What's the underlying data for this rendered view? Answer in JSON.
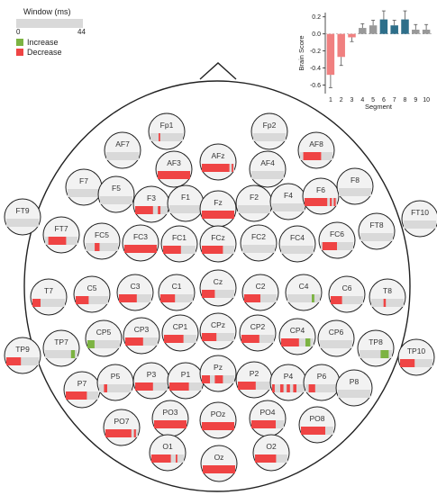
{
  "legend": {
    "title": "Window (ms)",
    "min_label": "0",
    "max_label": "44",
    "increase_label": "Increase",
    "decrease_label": "Decrease",
    "increase_color": "#7cb342",
    "decrease_color": "#ef4444"
  },
  "chart_data": {
    "type": "bar",
    "x": [
      1,
      2,
      3,
      4,
      5,
      6,
      7,
      8,
      9,
      10
    ],
    "values": [
      -0.48,
      -0.27,
      -0.04,
      0.07,
      0.1,
      0.17,
      0.1,
      0.17,
      0.05,
      0.05
    ],
    "errors": [
      0.15,
      0.1,
      0.05,
      0.05,
      0.06,
      0.1,
      0.06,
      0.1,
      0.06,
      0.06
    ],
    "colors": [
      "#f08080",
      "#f08080",
      "#f08080",
      "#999999",
      "#999999",
      "#2e6f8a",
      "#2e6f8a",
      "#2e6f8a",
      "#999999",
      "#999999"
    ],
    "xlabel": "Segment",
    "ylabel": "Brain Score",
    "yticks": [
      "0.2",
      "0.0",
      "-0.2",
      "-0.4",
      "-0.6"
    ],
    "ylim": [
      -0.7,
      0.25
    ]
  },
  "electrodes": [
    {
      "label": "Fp1",
      "marks": [
        [
          0.25,
          0.05,
          "d"
        ]
      ]
    },
    {
      "label": "Fp2",
      "marks": []
    },
    {
      "label": "AF7",
      "marks": []
    },
    {
      "label": "AF3",
      "marks": [
        [
          0.0,
          1.0,
          "d"
        ]
      ]
    },
    {
      "label": "AFz",
      "marks": [
        [
          0.0,
          0.85,
          "d"
        ],
        [
          0.92,
          0.05,
          "d"
        ]
      ]
    },
    {
      "label": "AF4",
      "marks": []
    },
    {
      "label": "AF8",
      "marks": [
        [
          0.1,
          0.55,
          "d"
        ]
      ]
    },
    {
      "label": "F7",
      "marks": []
    },
    {
      "label": "F5",
      "marks": []
    },
    {
      "label": "F3",
      "marks": [
        [
          0.0,
          0.55,
          "d"
        ],
        [
          0.7,
          0.08,
          "d"
        ]
      ]
    },
    {
      "label": "F1",
      "marks": []
    },
    {
      "label": "Fz",
      "marks": [
        [
          0.0,
          1.0,
          "d"
        ]
      ]
    },
    {
      "label": "F2",
      "marks": []
    },
    {
      "label": "F4",
      "marks": []
    },
    {
      "label": "F6",
      "marks": [
        [
          0.0,
          0.7,
          "d"
        ],
        [
          0.78,
          0.06,
          "d"
        ],
        [
          0.9,
          0.06,
          "d"
        ]
      ]
    },
    {
      "label": "F8",
      "marks": []
    },
    {
      "label": "FT9",
      "marks": []
    },
    {
      "label": "FT7",
      "marks": [
        [
          0.1,
          0.55,
          "d"
        ]
      ]
    },
    {
      "label": "FC5",
      "marks": [
        [
          0.28,
          0.15,
          "d"
        ]
      ]
    },
    {
      "label": "FC3",
      "marks": [
        [
          0.0,
          1.0,
          "d"
        ]
      ]
    },
    {
      "label": "FC1",
      "marks": [
        [
          0.0,
          0.55,
          "d"
        ]
      ]
    },
    {
      "label": "FCz",
      "marks": [
        [
          0.0,
          0.65,
          "d"
        ]
      ]
    },
    {
      "label": "FC2",
      "marks": []
    },
    {
      "label": "FC4",
      "marks": []
    },
    {
      "label": "FC6",
      "marks": [
        [
          0.05,
          0.45,
          "d"
        ]
      ]
    },
    {
      "label": "FT8",
      "marks": []
    },
    {
      "label": "FT10",
      "marks": []
    },
    {
      "label": "T7",
      "marks": [
        [
          0.0,
          0.25,
          "d"
        ]
      ]
    },
    {
      "label": "C5",
      "marks": [
        [
          0.0,
          0.4,
          "d"
        ]
      ]
    },
    {
      "label": "C3",
      "marks": [
        [
          0.0,
          0.55,
          "d"
        ]
      ]
    },
    {
      "label": "C1",
      "marks": [
        [
          0.0,
          0.45,
          "d"
        ]
      ]
    },
    {
      "label": "Cz",
      "marks": [
        [
          0.0,
          0.4,
          "d"
        ]
      ]
    },
    {
      "label": "C2",
      "marks": [
        [
          0.0,
          0.5,
          "d"
        ]
      ]
    },
    {
      "label": "C4",
      "marks": [
        [
          0.75,
          0.08,
          "i"
        ]
      ]
    },
    {
      "label": "C6",
      "marks": [
        [
          0.0,
          0.35,
          "d"
        ]
      ]
    },
    {
      "label": "T8",
      "marks": [
        [
          0.38,
          0.07,
          "d"
        ]
      ]
    },
    {
      "label": "TP9",
      "marks": [
        [
          0.0,
          0.45,
          "d"
        ]
      ]
    },
    {
      "label": "TP7",
      "marks": [
        [
          0.8,
          0.12,
          "i"
        ]
      ]
    },
    {
      "label": "CP5",
      "marks": [
        [
          0.0,
          0.22,
          "i"
        ]
      ]
    },
    {
      "label": "CP3",
      "marks": [
        [
          0.0,
          0.55,
          "d"
        ]
      ]
    },
    {
      "label": "CP1",
      "marks": [
        [
          0.0,
          0.6,
          "d"
        ]
      ]
    },
    {
      "label": "CPz",
      "marks": [
        [
          0.0,
          0.45,
          "d"
        ]
      ]
    },
    {
      "label": "CP2",
      "marks": [
        [
          0.0,
          0.55,
          "d"
        ]
      ]
    },
    {
      "label": "CP4",
      "marks": [
        [
          0.0,
          0.55,
          "d"
        ],
        [
          0.75,
          0.15,
          "i"
        ]
      ]
    },
    {
      "label": "CP6",
      "marks": []
    },
    {
      "label": "TP8",
      "marks": [
        [
          0.65,
          0.25,
          "i"
        ]
      ]
    },
    {
      "label": "TP10",
      "marks": [
        [
          0.0,
          0.45,
          "d"
        ]
      ]
    },
    {
      "label": "P7",
      "marks": [
        [
          0.0,
          0.65,
          "d"
        ]
      ]
    },
    {
      "label": "P5",
      "marks": [
        [
          0.15,
          0.1,
          "d"
        ]
      ]
    },
    {
      "label": "P3",
      "marks": [
        [
          0.0,
          0.55,
          "d"
        ]
      ]
    },
    {
      "label": "P1",
      "marks": [
        [
          0.0,
          0.6,
          "d"
        ]
      ]
    },
    {
      "label": "Pz",
      "marks": [
        [
          0.0,
          0.25,
          "d"
        ],
        [
          0.4,
          0.25,
          "d"
        ]
      ]
    },
    {
      "label": "P2",
      "marks": [
        [
          0.0,
          0.55,
          "d"
        ]
      ]
    },
    {
      "label": "P4",
      "marks": [
        [
          0.0,
          0.08,
          "d"
        ],
        [
          0.25,
          0.1,
          "d"
        ],
        [
          0.45,
          0.1,
          "d"
        ],
        [
          0.65,
          0.1,
          "d"
        ]
      ]
    },
    {
      "label": "P6",
      "marks": [
        [
          0.1,
          0.2,
          "d"
        ]
      ]
    },
    {
      "label": "P8",
      "marks": []
    },
    {
      "label": "PO7",
      "marks": [
        [
          0.0,
          0.8,
          "d"
        ],
        [
          0.88,
          0.06,
          "d"
        ]
      ]
    },
    {
      "label": "PO3",
      "marks": [
        [
          0.0,
          1.0,
          "d"
        ]
      ]
    },
    {
      "label": "POz",
      "marks": [
        [
          0.0,
          1.0,
          "d"
        ]
      ]
    },
    {
      "label": "PO4",
      "marks": [
        [
          0.0,
          0.75,
          "d"
        ]
      ]
    },
    {
      "label": "PO8",
      "marks": [
        [
          0.0,
          0.75,
          "d"
        ]
      ]
    },
    {
      "label": "O1",
      "marks": [
        [
          0.0,
          0.6,
          "d"
        ],
        [
          0.75,
          0.05,
          "d"
        ]
      ]
    },
    {
      "label": "Oz",
      "marks": [
        [
          0.0,
          1.0,
          "d"
        ]
      ]
    },
    {
      "label": "O2",
      "marks": [
        [
          0.0,
          0.65,
          "d"
        ]
      ]
    }
  ]
}
